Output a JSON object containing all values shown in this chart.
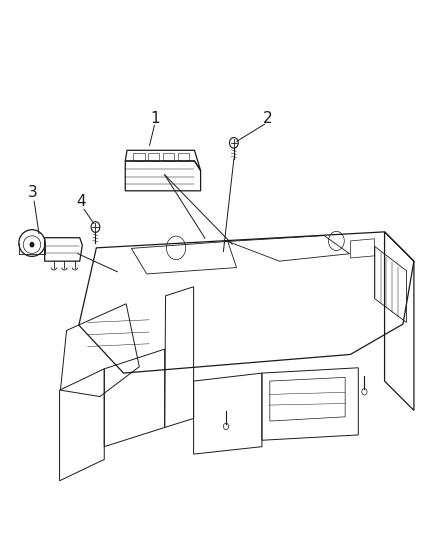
{
  "background_color": "#ffffff",
  "line_color": "#1a1a1a",
  "label_color": "#000000",
  "label_fontsize": 11,
  "figsize": [
    4.38,
    5.33
  ],
  "dpi": 100
}
